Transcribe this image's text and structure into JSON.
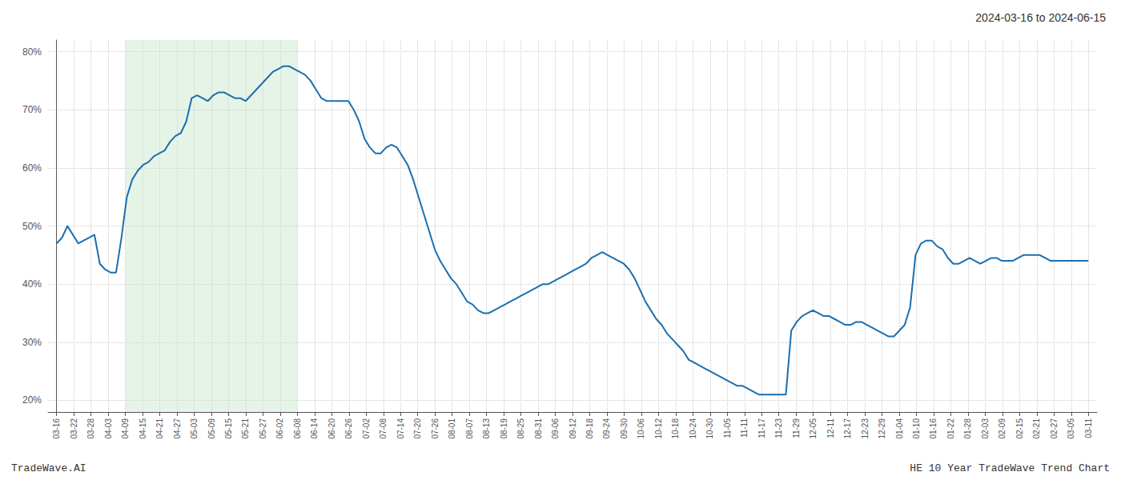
{
  "chart_data": {
    "type": "line",
    "title": "2024-03-16 to 2024-06-15",
    "annotations": [
      "TradeWave.AI",
      "HE 10 Year TradeWave Trend Chart"
    ],
    "color": "#1a6faf",
    "grid": true,
    "span": {
      "from": 4,
      "to": 14,
      "color": "#c8e6c9"
    },
    "xlim": [
      -0.5,
      60.5
    ],
    "xticks": [
      {
        "value": 0,
        "label": "03-16"
      },
      {
        "value": 1,
        "label": "03-22"
      },
      {
        "value": 2,
        "label": "03-28"
      },
      {
        "value": 3,
        "label": "04-03"
      },
      {
        "value": 4,
        "label": "04-09"
      },
      {
        "value": 5,
        "label": "04-15"
      },
      {
        "value": 6,
        "label": "04-21"
      },
      {
        "value": 7,
        "label": "04-27"
      },
      {
        "value": 8,
        "label": "05-03"
      },
      {
        "value": 9,
        "label": "05-09"
      },
      {
        "value": 10,
        "label": "05-15"
      },
      {
        "value": 11,
        "label": "05-21"
      },
      {
        "value": 12,
        "label": "05-27"
      },
      {
        "value": 13,
        "label": "06-02"
      },
      {
        "value": 14,
        "label": "06-08"
      },
      {
        "value": 15,
        "label": "06-14"
      },
      {
        "value": 16,
        "label": "06-20"
      },
      {
        "value": 17,
        "label": "06-26"
      },
      {
        "value": 18,
        "label": "07-02"
      },
      {
        "value": 19,
        "label": "07-08"
      },
      {
        "value": 20,
        "label": "07-14"
      },
      {
        "value": 21,
        "label": "07-20"
      },
      {
        "value": 22,
        "label": "07-26"
      },
      {
        "value": 23,
        "label": "08-01"
      },
      {
        "value": 24,
        "label": "08-07"
      },
      {
        "value": 25,
        "label": "08-13"
      },
      {
        "value": 26,
        "label": "08-19"
      },
      {
        "value": 27,
        "label": "08-25"
      },
      {
        "value": 28,
        "label": "08-31"
      },
      {
        "value": 29,
        "label": "09-06"
      },
      {
        "value": 30,
        "label": "09-12"
      },
      {
        "value": 31,
        "label": "09-18"
      },
      {
        "value": 32,
        "label": "09-24"
      },
      {
        "value": 33,
        "label": "09-30"
      },
      {
        "value": 34,
        "label": "10-06"
      },
      {
        "value": 35,
        "label": "10-12"
      },
      {
        "value": 36,
        "label": "10-18"
      },
      {
        "value": 37,
        "label": "10-24"
      },
      {
        "value": 38,
        "label": "10-30"
      },
      {
        "value": 39,
        "label": "11-05"
      },
      {
        "value": 40,
        "label": "11-11"
      },
      {
        "value": 41,
        "label": "11-17"
      },
      {
        "value": 42,
        "label": "11-23"
      },
      {
        "value": 43,
        "label": "11-29"
      },
      {
        "value": 44,
        "label": "12-05"
      },
      {
        "value": 45,
        "label": "12-11"
      },
      {
        "value": 46,
        "label": "12-17"
      },
      {
        "value": 47,
        "label": "12-23"
      },
      {
        "value": 48,
        "label": "12-29"
      },
      {
        "value": 49,
        "label": "01-04"
      },
      {
        "value": 50,
        "label": "01-10"
      },
      {
        "value": 51,
        "label": "01-16"
      },
      {
        "value": 52,
        "label": "01-22"
      },
      {
        "value": 53,
        "label": "01-28"
      },
      {
        "value": 54,
        "label": "02-03"
      },
      {
        "value": 55,
        "label": "02-09"
      },
      {
        "value": 56,
        "label": "02-15"
      },
      {
        "value": 57,
        "label": "02-21"
      },
      {
        "value": 58,
        "label": "02-27"
      },
      {
        "value": 59,
        "label": "03-05"
      },
      {
        "value": 60,
        "label": "03-11"
      }
    ],
    "ylim": [
      18,
      82
    ],
    "yticks": [
      {
        "value": 20,
        "label": "20%"
      },
      {
        "value": 30,
        "label": "30%"
      },
      {
        "value": 40,
        "label": "40%"
      },
      {
        "value": 50,
        "label": "50%"
      },
      {
        "value": 60,
        "label": "60%"
      },
      {
        "value": 70,
        "label": "70%"
      },
      {
        "value": 80,
        "label": "80%"
      }
    ],
    "x": [
      0,
      0.3141,
      0.6283,
      0.9424,
      1.2565,
      1.5707,
      1.8848,
      2.199,
      2.5131,
      2.8272,
      3.1414,
      3.4555,
      3.7696,
      4.0838,
      4.3979,
      4.712,
      5.0262,
      5.3403,
      5.6545,
      5.9686,
      6.2827,
      6.5969,
      6.911,
      7.2251,
      7.5393,
      7.8534,
      8.1675,
      8.4817,
      8.7958,
      9.1099,
      9.4241,
      9.7382,
      10.0524,
      10.3665,
      10.6806,
      10.9948,
      11.3089,
      11.623,
      11.9372,
      12.2513,
      12.5654,
      12.8796,
      13.1937,
      13.5079,
      13.822,
      14.1361,
      14.4503,
      14.7644,
      15.0785,
      15.3927,
      15.7068,
      16.0209,
      16.3351,
      16.6492,
      16.9634,
      17.2775,
      17.5916,
      17.9058,
      18.2199,
      18.534,
      18.8482,
      19.1623,
      19.4764,
      19.7906,
      20.1047,
      20.4188,
      20.733,
      21.0471,
      21.3613,
      21.6754,
      21.9895,
      22.3037,
      22.6178,
      22.9319,
      23.2461,
      23.5602,
      23.8743,
      24.1885,
      24.5026,
      24.8168,
      25.1309,
      25.445,
      25.7592,
      26.0733,
      26.3874,
      26.7016,
      27.0157,
      27.3298,
      27.644,
      27.9581,
      28.2723,
      28.5864,
      28.9005,
      29.2147,
      29.5288,
      29.8429,
      30.1571,
      30.4712,
      30.7853,
      31.0995,
      31.4136,
      31.7277,
      32.0419,
      32.356,
      32.6702,
      32.9843,
      33.2984,
      33.6126,
      33.9267,
      34.2408,
      34.555,
      34.8691,
      35.1832,
      35.4974,
      35.8115,
      36.1257,
      36.4398,
      36.7539,
      37.0681,
      37.3822,
      37.6963,
      38.0105,
      38.3246,
      38.6387,
      38.9529,
      39.267,
      39.5812,
      39.8953,
      40.2094,
      40.5236,
      40.8377,
      41.1518,
      41.466,
      41.7801,
      42.0942,
      42.4084,
      42.7225,
      43.0366,
      43.3508,
      43.6649,
      43.9791,
      44.2932,
      44.6073,
      44.9215,
      45.2356,
      45.5497,
      45.8639,
      46.178,
      46.4921,
      46.8063,
      47.1204,
      47.4346,
      47.7487,
      48.0628,
      48.377,
      48.6911,
      49.0052,
      49.3194,
      49.6335,
      49.9476,
      50.2618,
      50.5759,
      50.8901,
      51.2042,
      51.5183,
      51.8325,
      52.1466,
      52.4607,
      52.7749,
      53.089,
      53.4031,
      53.7173,
      54.0314,
      54.3455,
      54.6597,
      54.9738,
      55.288,
      55.6021,
      55.9162,
      56.2304,
      56.5445,
      56.8586,
      57.1728,
      57.4869,
      57.801,
      58.1152,
      58.4293,
      58.7435,
      59.0576,
      59.3717,
      59.6859,
      60
    ],
    "values": [
      47.0,
      48.0,
      50.0,
      48.5,
      47.0,
      47.5,
      48.0,
      48.5,
      43.5,
      42.5,
      42.0,
      42.0,
      48.0,
      55.0,
      58.0,
      59.5,
      60.5,
      61.0,
      62.0,
      62.5,
      63.0,
      64.5,
      65.5,
      66.0,
      68.0,
      72.0,
      72.5,
      72.0,
      71.5,
      72.5,
      73.0,
      73.0,
      72.5,
      72.0,
      72.0,
      71.5,
      72.5,
      73.5,
      74.5,
      75.5,
      76.5,
      77.0,
      77.5,
      77.5,
      77.0,
      76.5,
      76.0,
      75.0,
      73.5,
      72.0,
      71.5,
      71.5,
      71.5,
      71.5,
      71.5,
      70.0,
      68.0,
      65.0,
      63.5,
      62.5,
      62.5,
      63.5,
      64.0,
      63.5,
      62.0,
      60.5,
      58.0,
      55.0,
      52.0,
      49.0,
      46.0,
      44.0,
      42.5,
      41.0,
      40.0,
      38.5,
      37.0,
      36.5,
      35.5,
      35.0,
      35.0,
      35.5,
      36.0,
      36.5,
      37.0,
      37.5,
      38.0,
      38.5,
      39.0,
      39.5,
      40.0,
      40.0,
      40.5,
      41.0,
      41.5,
      42.0,
      42.5,
      43.0,
      43.5,
      44.5,
      45.0,
      45.5,
      45.0,
      44.5,
      44.0,
      43.5,
      42.5,
      41.0,
      39.0,
      37.0,
      35.5,
      34.0,
      33.0,
      31.5,
      30.5,
      29.5,
      28.5,
      27.0,
      26.5,
      26.0,
      25.5,
      25.0,
      24.5,
      24.0,
      23.5,
      23.0,
      22.5,
      22.5,
      22.0,
      21.5,
      21.0,
      21.0,
      21.0,
      21.0,
      21.0,
      21.0,
      32.0,
      33.5,
      34.5,
      35.0,
      35.5,
      35.0,
      34.5,
      34.5,
      34.0,
      33.5,
      33.0,
      33.0,
      33.5,
      33.5,
      33.0,
      32.5,
      32.0,
      31.5,
      31.0,
      31.0,
      32.0,
      33.0,
      36.0,
      45.0,
      47.0,
      47.5,
      47.5,
      46.5,
      46.0,
      44.5,
      43.5,
      43.5,
      44.0,
      44.5,
      44.0,
      43.5,
      44.0,
      44.5,
      44.5,
      44.0,
      44.0,
      44.0,
      44.5,
      45.0,
      45.0,
      45.0,
      45.0,
      44.5,
      44.0,
      44.0,
      44.0,
      44.0,
      44.0,
      44.0,
      44.0,
      44.0
    ]
  }
}
